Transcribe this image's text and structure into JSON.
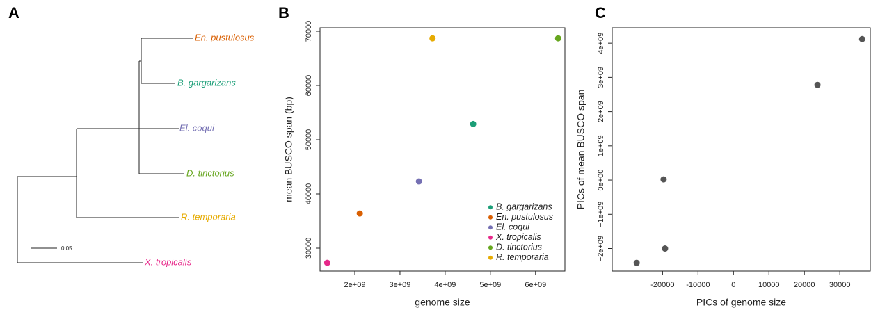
{
  "chart_data": [
    {
      "type": "tree",
      "panel": "A",
      "leaves": [
        {
          "name": "En. pustulosus",
          "color": "#d95f02"
        },
        {
          "name": "B. gargarizans",
          "color": "#1b9e77"
        },
        {
          "name": "El. coqui",
          "color": "#7570b3"
        },
        {
          "name": "D. tinctorius",
          "color": "#66a61e"
        },
        {
          "name": "R. temporaria",
          "color": "#e6ab02"
        },
        {
          "name": "X. tropicalis",
          "color": "#e7298a"
        }
      ],
      "scale_label": 0.05
    },
    {
      "type": "scatter",
      "panel": "B",
      "xlabel": "genome size",
      "ylabel": "mean BUSCO span (bp)",
      "xlim": [
        1230000000,
        6650000000
      ],
      "ylim": [
        25770,
        70640
      ],
      "xticks": [
        {
          "value": 2000000000,
          "label": "2e+09"
        },
        {
          "value": 3000000000,
          "label": "3e+09"
        },
        {
          "value": 4000000000,
          "label": "4e+09"
        },
        {
          "value": 5000000000,
          "label": "5e+09"
        },
        {
          "value": 6000000000,
          "label": "6e+09"
        }
      ],
      "yticks": [
        30000,
        40000,
        50000,
        60000,
        70000
      ],
      "legend": "bottom-right",
      "series": [
        {
          "name": "B. gargarizans",
          "color": "#1b9e77",
          "x": [
            4620000000
          ],
          "values": [
            52900
          ]
        },
        {
          "name": "En. pustulosus",
          "color": "#d95f02",
          "x": [
            2110000000
          ],
          "values": [
            36400
          ]
        },
        {
          "name": "El. coqui",
          "color": "#7570b3",
          "x": [
            3420000000
          ],
          "values": [
            42300
          ]
        },
        {
          "name": "X. tropicalis",
          "color": "#e7298a",
          "x": [
            1390000000
          ],
          "values": [
            27300
          ]
        },
        {
          "name": "D. tinctorius",
          "color": "#66a61e",
          "x": [
            6500000000
          ],
          "values": [
            68700
          ]
        },
        {
          "name": "R. temporaria",
          "color": "#e6ab02",
          "x": [
            3720000000
          ],
          "values": [
            68700
          ]
        }
      ]
    },
    {
      "type": "scatter",
      "panel": "C",
      "xlabel": "PICs of genome size",
      "ylabel": "PICs of mean BUSCO span",
      "xlim": [
        -34200,
        38600
      ],
      "ylim": [
        -2660000000,
        4450000000
      ],
      "xticks": [
        -20000,
        -10000,
        0,
        10000,
        20000,
        30000
      ],
      "yticks": [
        {
          "value": -2000000000,
          "label": "−2e+09"
        },
        {
          "value": -1000000000,
          "label": "−1e+09"
        },
        {
          "value": 0,
          "label": "0e+00"
        },
        {
          "value": 1000000000,
          "label": "1e+09"
        },
        {
          "value": 2000000000,
          "label": "2e+09"
        },
        {
          "value": 3000000000,
          "label": "3e+09"
        },
        {
          "value": 4000000000,
          "label": "4e+09"
        }
      ],
      "series": [
        {
          "color": "#555555",
          "x": [
            -27300,
            -19300,
            -19700,
            23700,
            36300
          ],
          "values": [
            -2420000000,
            -2000000000,
            20000000,
            2780000000,
            4120000000
          ]
        }
      ]
    }
  ]
}
